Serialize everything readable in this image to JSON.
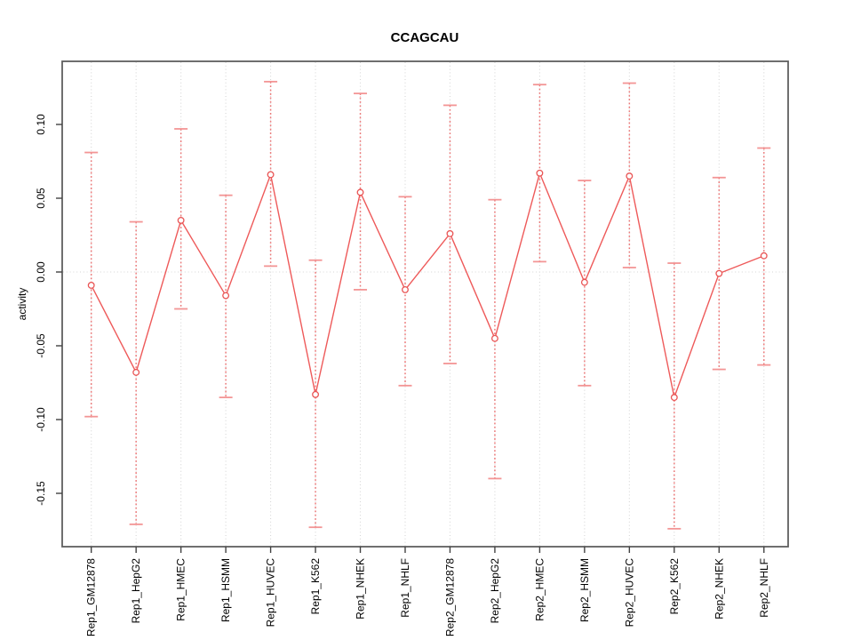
{
  "chart_data": {
    "type": "line",
    "title": "CCAGCAU",
    "ylabel": "activity",
    "xlabel": "",
    "categories": [
      "Rep1_GM12878",
      "Rep1_HepG2",
      "Rep1_HMEC",
      "Rep1_HSMM",
      "Rep1_HUVEC",
      "Rep1_K562",
      "Rep1_NHEK",
      "Rep1_NHLF",
      "Rep2_GM12878",
      "Rep2_HepG2",
      "Rep2_HMEC",
      "Rep2_HSMM",
      "Rep2_HUVEC",
      "Rep2_K562",
      "Rep2_NHEK",
      "Rep2_NHLF"
    ],
    "series": [
      {
        "name": "activity",
        "values": [
          -0.009,
          -0.068,
          0.035,
          -0.016,
          0.066,
          -0.083,
          0.054,
          -0.012,
          0.026,
          -0.045,
          0.067,
          -0.007,
          0.065,
          -0.085,
          -0.001,
          0.011
        ],
        "ci_high": [
          0.081,
          0.034,
          0.097,
          0.052,
          0.129,
          0.008,
          0.121,
          0.051,
          0.113,
          0.049,
          0.127,
          0.062,
          0.128,
          0.006,
          0.064,
          0.084
        ],
        "ci_low": [
          -0.098,
          -0.171,
          -0.025,
          -0.085,
          0.004,
          -0.173,
          -0.012,
          -0.077,
          -0.062,
          -0.14,
          0.007,
          -0.077,
          0.003,
          -0.174,
          -0.066,
          -0.063
        ]
      }
    ],
    "y_tick_labels": [
      "0.10",
      "0.05",
      "0.00",
      "-0.05",
      "-0.10",
      "-0.15"
    ],
    "ylim": [
      -0.189,
      0.142
    ],
    "zero_reference_line": true,
    "grid": "vertical-dotted",
    "legend": "none",
    "colors": {
      "series_line": "#ee5a5a",
      "point_stroke": "#e95555",
      "point_fill": "#ffffff",
      "error_line": "#ea5c5c",
      "error_cap": "#f39090",
      "grid": "#d6d6d6",
      "zero_line": "#d6d6d6",
      "box": "#5f5f5f",
      "tick": "#424242",
      "text": "#000000",
      "background": "#ffffff"
    }
  }
}
